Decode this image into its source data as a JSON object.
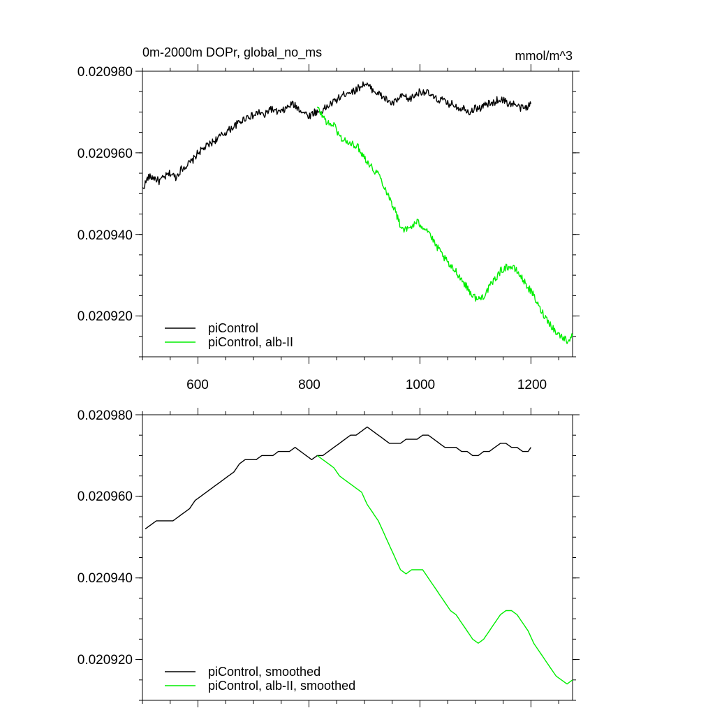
{
  "chart_data": [
    {
      "type": "line",
      "title": "0m-2000m DOPr, global_no_ms",
      "units": "mmol/m^3",
      "xlim": [
        500,
        1275
      ],
      "ylim": [
        0.02091,
        0.02098
      ],
      "xticks": [
        600,
        800,
        1000,
        1200
      ],
      "xtick_labels": [
        "600",
        "800",
        "1000",
        "1200"
      ],
      "yticks": [
        0.02092,
        0.02094,
        0.02096,
        0.02098
      ],
      "ytick_labels": [
        "0.020920",
        "0.020940",
        "0.020960",
        "0.020980"
      ],
      "legend_position": "bottom-left",
      "series": [
        {
          "name": "piControl",
          "color": "#000000",
          "noise": true,
          "x": [
            500,
            510,
            520,
            530,
            540,
            550,
            560,
            570,
            580,
            590,
            600,
            610,
            620,
            630,
            640,
            650,
            660,
            670,
            680,
            690,
            700,
            710,
            720,
            730,
            740,
            750,
            760,
            770,
            780,
            790,
            800,
            810,
            820,
            830,
            840,
            850,
            860,
            870,
            880,
            890,
            900,
            910,
            920,
            930,
            940,
            950,
            960,
            970,
            980,
            990,
            1000,
            1010,
            1020,
            1030,
            1040,
            1050,
            1060,
            1070,
            1080,
            1090,
            1100,
            1110,
            1120,
            1130,
            1140,
            1150,
            1160,
            1170,
            1180,
            1190,
            1200
          ],
          "y": [
            0.020951,
            0.020954,
            0.020954,
            0.020953,
            0.020954,
            0.020955,
            0.020954,
            0.020956,
            0.020957,
            0.020958,
            0.02096,
            0.020961,
            0.020962,
            0.020963,
            0.020964,
            0.020965,
            0.020966,
            0.020967,
            0.020968,
            0.020969,
            0.020969,
            0.02097,
            0.020969,
            0.020971,
            0.02097,
            0.02097,
            0.020971,
            0.020972,
            0.020971,
            0.02097,
            0.020969,
            0.02097,
            0.02097,
            0.020971,
            0.020972,
            0.020973,
            0.020974,
            0.020975,
            0.020975,
            0.020976,
            0.020977,
            0.020976,
            0.020975,
            0.020974,
            0.020973,
            0.020972,
            0.020973,
            0.020974,
            0.020973,
            0.020974,
            0.020975,
            0.020975,
            0.020974,
            0.020973,
            0.020973,
            0.020972,
            0.020972,
            0.020971,
            0.020971,
            0.02097,
            0.020971,
            0.020971,
            0.020972,
            0.020972,
            0.020973,
            0.020973,
            0.020972,
            0.020972,
            0.020971,
            0.020971,
            0.020972
          ]
        },
        {
          "name": "piControl, alb-II",
          "color": "#00ee00",
          "noise": true,
          "x": [
            815,
            825,
            835,
            845,
            855,
            865,
            875,
            885,
            895,
            905,
            915,
            925,
            935,
            945,
            955,
            965,
            975,
            985,
            995,
            1005,
            1015,
            1025,
            1035,
            1045,
            1055,
            1065,
            1075,
            1085,
            1095,
            1105,
            1115,
            1125,
            1135,
            1145,
            1155,
            1165,
            1175,
            1185,
            1195,
            1205,
            1215,
            1225,
            1235,
            1245,
            1255,
            1265,
            1275
          ],
          "y": [
            0.020971,
            0.020969,
            0.020967,
            0.020967,
            0.020964,
            0.020963,
            0.020962,
            0.020962,
            0.02096,
            0.020958,
            0.020956,
            0.020955,
            0.020952,
            0.020949,
            0.020946,
            0.020942,
            0.020941,
            0.020942,
            0.020943,
            0.020942,
            0.020941,
            0.020938,
            0.020936,
            0.020934,
            0.020932,
            0.020931,
            0.020929,
            0.020927,
            0.020925,
            0.020924,
            0.020925,
            0.020927,
            0.020929,
            0.020931,
            0.020932,
            0.020932,
            0.020931,
            0.020929,
            0.020927,
            0.020925,
            0.020922,
            0.02092,
            0.020918,
            0.020916,
            0.020915,
            0.020914,
            0.020915
          ]
        }
      ]
    },
    {
      "type": "line",
      "xlim": [
        500,
        1275
      ],
      "ylim": [
        0.02091,
        0.02098
      ],
      "xticks": [
        600,
        800,
        1000,
        1200
      ],
      "yticks": [
        0.02092,
        0.02094,
        0.02096,
        0.02098
      ],
      "ytick_labels": [
        "0.020920",
        "0.020940",
        "0.020960",
        "0.020980"
      ],
      "legend_position": "bottom-left",
      "series": [
        {
          "name": "piControl, smoothed",
          "color": "#000000",
          "noise": false,
          "x": [
            505,
            515,
            525,
            535,
            545,
            555,
            565,
            575,
            585,
            595,
            605,
            615,
            625,
            635,
            645,
            655,
            665,
            675,
            685,
            695,
            705,
            715,
            725,
            735,
            745,
            755,
            765,
            775,
            785,
            795,
            805,
            815,
            825,
            835,
            845,
            855,
            865,
            875,
            885,
            895,
            905,
            915,
            925,
            935,
            945,
            955,
            965,
            975,
            985,
            995,
            1005,
            1015,
            1025,
            1035,
            1045,
            1055,
            1065,
            1075,
            1085,
            1095,
            1105,
            1115,
            1125,
            1135,
            1145,
            1155,
            1165,
            1175,
            1185,
            1195,
            1200
          ],
          "y": [
            0.020952,
            0.020953,
            0.020954,
            0.020954,
            0.020954,
            0.020954,
            0.020955,
            0.020956,
            0.020957,
            0.020959,
            0.02096,
            0.020961,
            0.020962,
            0.020963,
            0.020964,
            0.020965,
            0.020966,
            0.020968,
            0.020969,
            0.020969,
            0.020969,
            0.02097,
            0.02097,
            0.02097,
            0.020971,
            0.020971,
            0.020971,
            0.020972,
            0.020971,
            0.02097,
            0.020969,
            0.02097,
            0.02097,
            0.020971,
            0.020972,
            0.020973,
            0.020974,
            0.020975,
            0.020975,
            0.020976,
            0.020977,
            0.020976,
            0.020975,
            0.020974,
            0.020973,
            0.020973,
            0.020973,
            0.020974,
            0.020974,
            0.020974,
            0.020975,
            0.020975,
            0.020974,
            0.020973,
            0.020972,
            0.020972,
            0.020972,
            0.020971,
            0.020971,
            0.02097,
            0.02097,
            0.020971,
            0.020971,
            0.020972,
            0.020973,
            0.020973,
            0.020972,
            0.020972,
            0.020971,
            0.020971,
            0.020972
          ]
        },
        {
          "name": "piControl, alb-II, smoothed",
          "color": "#00ee00",
          "noise": false,
          "x": [
            815,
            825,
            835,
            845,
            855,
            865,
            875,
            885,
            895,
            905,
            915,
            925,
            935,
            945,
            955,
            965,
            975,
            985,
            995,
            1005,
            1015,
            1025,
            1035,
            1045,
            1055,
            1065,
            1075,
            1085,
            1095,
            1105,
            1115,
            1125,
            1135,
            1145,
            1155,
            1165,
            1175,
            1185,
            1195,
            1205,
            1215,
            1225,
            1235,
            1245,
            1255,
            1265,
            1275
          ],
          "y": [
            0.02097,
            0.020969,
            0.020968,
            0.020967,
            0.020965,
            0.020964,
            0.020963,
            0.020962,
            0.020961,
            0.020958,
            0.020956,
            0.020954,
            0.020951,
            0.020948,
            0.020945,
            0.020942,
            0.020941,
            0.020942,
            0.020942,
            0.020942,
            0.02094,
            0.020938,
            0.020936,
            0.020934,
            0.020932,
            0.020931,
            0.020929,
            0.020927,
            0.020925,
            0.020924,
            0.020925,
            0.020927,
            0.020929,
            0.020931,
            0.020932,
            0.020932,
            0.020931,
            0.020929,
            0.020927,
            0.020924,
            0.020922,
            0.02092,
            0.020918,
            0.020916,
            0.020915,
            0.020914,
            0.020915
          ]
        }
      ]
    }
  ]
}
